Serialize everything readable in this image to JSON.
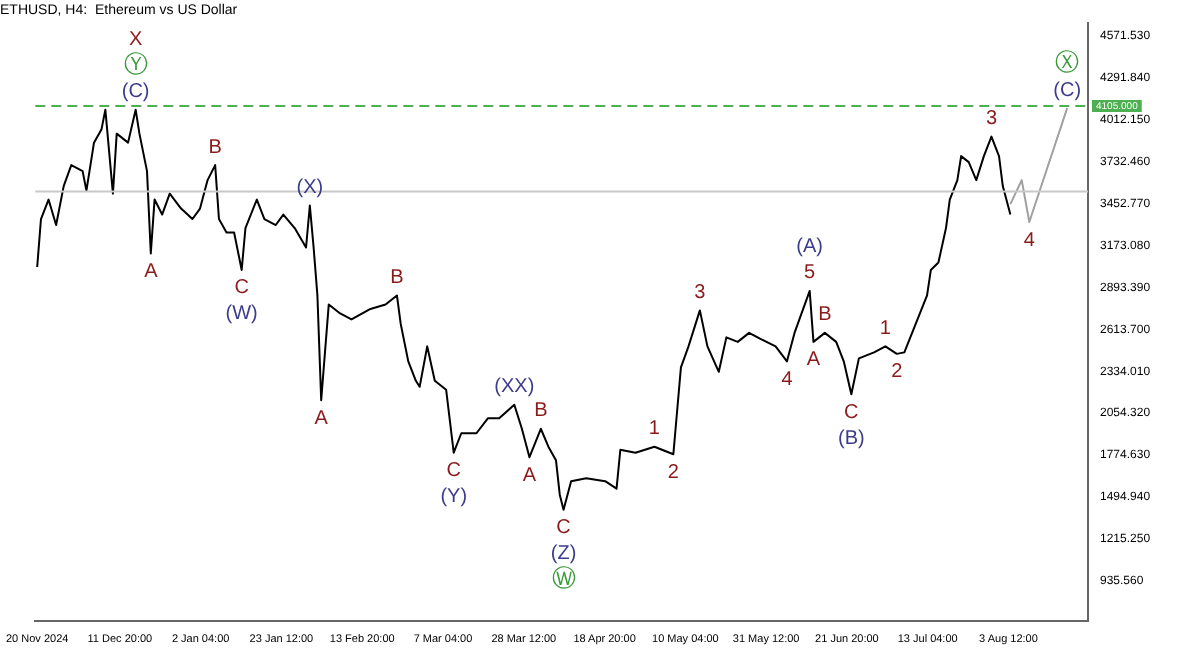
{
  "chart_data": {
    "type": "line",
    "title": "ETHUSD, H4:  Ethereum vs US Dollar",
    "legend": false,
    "grid": false,
    "marker": "none",
    "xlim": [
      "2024-11-19T12:00",
      "2025-08-24T12:00"
    ],
    "xticks": [
      {
        "value": "2024-11-20",
        "label": "20 Nov 2024"
      },
      {
        "value": "2024-12-11T20:00",
        "label": "11 Dec 20:00"
      },
      {
        "value": "2025-01-02T04:00",
        "label": "2 Jan 04:00"
      },
      {
        "value": "2025-01-23T12:00",
        "label": "23 Jan 12:00"
      },
      {
        "value": "2025-02-13T20:00",
        "label": "13 Feb 20:00"
      },
      {
        "value": "2025-03-07T04:00",
        "label": "7 Mar 04:00"
      },
      {
        "value": "2025-03-28T12:00",
        "label": "28 Mar 12:00"
      },
      {
        "value": "2025-04-18T20:00",
        "label": "18 Apr 20:00"
      },
      {
        "value": "2025-05-10T04:00",
        "label": "10 May 04:00"
      },
      {
        "value": "2025-05-31T12:00",
        "label": "31 May 12:00"
      },
      {
        "value": "2025-06-21T20:00",
        "label": "21 Jun 20:00"
      },
      {
        "value": "2025-07-13T04:00",
        "label": "13 Jul 04:00"
      },
      {
        "value": "2025-08-03T12:00",
        "label": "3 Aug 12:00"
      }
    ],
    "ylim": [
      668,
      4660
    ],
    "yticks": [
      {
        "value": 935.56,
        "label": "935.560"
      },
      {
        "value": 1215.25,
        "label": "1215.250"
      },
      {
        "value": 1494.94,
        "label": "1494.940"
      },
      {
        "value": 1774.63,
        "label": "1774.630"
      },
      {
        "value": 2054.32,
        "label": "2054.320"
      },
      {
        "value": 2334.01,
        "label": "2334.010"
      },
      {
        "value": 2613.7,
        "label": "2613.700"
      },
      {
        "value": 2893.39,
        "label": "2893.390"
      },
      {
        "value": 3173.08,
        "label": "3173.080"
      },
      {
        "value": 3452.77,
        "label": "3452.770"
      },
      {
        "value": 3732.46,
        "label": "3732.460"
      },
      {
        "value": 4012.15,
        "label": "4012.150"
      },
      {
        "value": 4291.84,
        "label": "4291.840"
      },
      {
        "value": 4571.53,
        "label": "4571.530"
      }
    ],
    "ref_lines": [
      {
        "axis": "y",
        "value": 4105,
        "label": "4105.000",
        "color": "#4caf50",
        "line_style": "dashed"
      },
      {
        "axis": "y",
        "value": 3533,
        "color": "#c8c8c8",
        "line_style": "solid"
      }
    ],
    "series": [
      {
        "color": "#000000",
        "x": [
          "2024-11-20",
          "2024-11-21",
          "2024-11-23",
          "2024-11-25",
          "2024-11-27",
          "2024-11-29",
          "2024-12-02",
          "2024-12-03",
          "2024-12-05",
          "2024-12-07",
          "2024-12-08",
          "2024-12-10",
          "2024-12-11",
          "2024-12-14",
          "2024-12-16",
          "2024-12-17",
          "2024-12-19",
          "2024-12-20",
          "2024-12-21",
          "2024-12-23",
          "2024-12-25",
          "2024-12-28",
          "2024-12-31",
          "2025-01-02",
          "2025-01-04",
          "2025-01-06",
          "2025-01-07",
          "2025-01-09",
          "2025-01-11",
          "2025-01-13",
          "2025-01-14",
          "2025-01-17",
          "2025-01-19",
          "2025-01-22",
          "2025-01-24",
          "2025-01-27",
          "2025-01-30",
          "2025-01-31",
          "2025-02-01",
          "2025-02-02",
          "2025-02-03",
          "2025-02-05",
          "2025-02-08",
          "2025-02-11",
          "2025-02-16",
          "2025-02-20",
          "2025-02-23",
          "2025-02-24",
          "2025-02-26",
          "2025-02-28",
          "2025-03-01",
          "2025-03-03",
          "2025-03-05",
          "2025-03-08",
          "2025-03-10",
          "2025-03-12",
          "2025-03-16",
          "2025-03-19",
          "2025-03-22",
          "2025-03-26",
          "2025-03-28",
          "2025-03-30",
          "2025-04-02",
          "2025-04-04",
          "2025-04-06",
          "2025-04-07",
          "2025-04-08",
          "2025-04-10",
          "2025-04-14",
          "2025-04-19",
          "2025-04-22",
          "2025-04-23",
          "2025-04-27",
          "2025-05-02",
          "2025-05-07",
          "2025-05-09",
          "2025-05-11",
          "2025-05-14",
          "2025-05-16",
          "2025-05-19",
          "2025-05-21",
          "2025-05-24",
          "2025-05-27",
          "2025-05-30",
          "2025-06-03",
          "2025-06-06",
          "2025-06-08",
          "2025-06-12",
          "2025-06-13",
          "2025-06-16",
          "2025-06-19",
          "2025-06-21",
          "2025-06-23",
          "2025-06-25",
          "2025-06-29",
          "2025-07-02",
          "2025-07-05",
          "2025-07-07",
          "2025-07-10",
          "2025-07-13",
          "2025-07-14",
          "2025-07-16",
          "2025-07-18",
          "2025-07-19",
          "2025-07-21",
          "2025-07-22",
          "2025-07-24",
          "2025-07-26",
          "2025-07-28",
          "2025-07-30",
          "2025-08-01",
          "2025-08-02",
          "2025-08-04"
        ],
        "values": [
          3030,
          3350,
          3480,
          3310,
          3570,
          3710,
          3670,
          3540,
          3860,
          3950,
          4080,
          3520,
          3920,
          3860,
          4080,
          3920,
          3670,
          3120,
          3480,
          3380,
          3520,
          3420,
          3350,
          3420,
          3610,
          3710,
          3350,
          3260,
          3260,
          3010,
          3290,
          3480,
          3350,
          3310,
          3380,
          3290,
          3160,
          3440,
          3160,
          2840,
          2140,
          2780,
          2720,
          2680,
          2750,
          2780,
          2840,
          2650,
          2400,
          2270,
          2230,
          2500,
          2270,
          2210,
          1790,
          1920,
          1920,
          2020,
          2020,
          2110,
          1950,
          1760,
          1950,
          1830,
          1740,
          1510,
          1410,
          1600,
          1620,
          1600,
          1550,
          1810,
          1790,
          1830,
          1780,
          2360,
          2500,
          2740,
          2500,
          2330,
          2560,
          2530,
          2590,
          2550,
          2500,
          2400,
          2590,
          2870,
          2530,
          2590,
          2530,
          2400,
          2180,
          2420,
          2460,
          2500,
          2450,
          2460,
          2650,
          2840,
          3010,
          3060,
          3290,
          3480,
          3610,
          3770,
          3730,
          3610,
          3770,
          3900,
          3770,
          3570,
          3380
        ]
      },
      {
        "color": "#a0a0a0",
        "x": [
          "2025-08-04",
          "2025-08-07",
          "2025-08-09",
          "2025-08-19"
        ],
        "values": [
          3450,
          3610,
          3330,
          4090
        ]
      }
    ],
    "annotations": [
      {
        "text": "(C)",
        "x": "2024-12-16",
        "y": 4080
      },
      {
        "text": "Ⓨ",
        "x": "2024-12-16",
        "y": 4080
      },
      {
        "text": "X",
        "x": "2024-12-16",
        "y": 4080
      },
      {
        "text": "A",
        "x": "2024-12-20",
        "y": 3120
      },
      {
        "text": "B",
        "x": "2025-01-06",
        "y": 3710
      },
      {
        "text": "C",
        "x": "2025-01-13",
        "y": 3010
      },
      {
        "text": "(W)",
        "x": "2025-01-13",
        "y": 3010
      },
      {
        "text": "(X)",
        "x": "2025-01-31",
        "y": 3440
      },
      {
        "text": "A",
        "x": "2025-02-03",
        "y": 2140
      },
      {
        "text": "B",
        "x": "2025-02-23",
        "y": 2840
      },
      {
        "text": "C",
        "x": "2025-03-10",
        "y": 1790
      },
      {
        "text": "(Y)",
        "x": "2025-03-10",
        "y": 1790
      },
      {
        "text": "(XX)",
        "x": "2025-03-26",
        "y": 2110
      },
      {
        "text": "A",
        "x": "2025-03-30",
        "y": 1760
      },
      {
        "text": "B",
        "x": "2025-04-02",
        "y": 1950
      },
      {
        "text": "C",
        "x": "2025-04-08",
        "y": 1410
      },
      {
        "text": "(Z)",
        "x": "2025-04-08",
        "y": 1410
      },
      {
        "text": "Ⓦ",
        "x": "2025-04-08",
        "y": 1410
      },
      {
        "text": "1",
        "x": "2025-05-02",
        "y": 1830
      },
      {
        "text": "2",
        "x": "2025-05-07",
        "y": 1780
      },
      {
        "text": "3",
        "x": "2025-05-14",
        "y": 2740
      },
      {
        "text": "4",
        "x": "2025-06-06",
        "y": 2400
      },
      {
        "text": "5",
        "x": "2025-06-12",
        "y": 2870
      },
      {
        "text": "(A)",
        "x": "2025-06-12",
        "y": 2870
      },
      {
        "text": "A",
        "x": "2025-06-13",
        "y": 2530
      },
      {
        "text": "B",
        "x": "2025-06-16",
        "y": 2590
      },
      {
        "text": "C",
        "x": "2025-06-23",
        "y": 2180
      },
      {
        "text": "(B)",
        "x": "2025-06-23",
        "y": 2180
      },
      {
        "text": "1",
        "x": "2025-07-02",
        "y": 2500
      },
      {
        "text": "2",
        "x": "2025-07-05",
        "y": 2450
      },
      {
        "text": "3",
        "x": "2025-07-30",
        "y": 3900
      },
      {
        "text": "4",
        "x": "2025-08-09",
        "y": 3330
      },
      {
        "text": "(C)",
        "x": "2025-08-19",
        "y": 4090
      },
      {
        "text": "Ⓧ",
        "x": "2025-08-19",
        "y": 4090
      }
    ]
  }
}
